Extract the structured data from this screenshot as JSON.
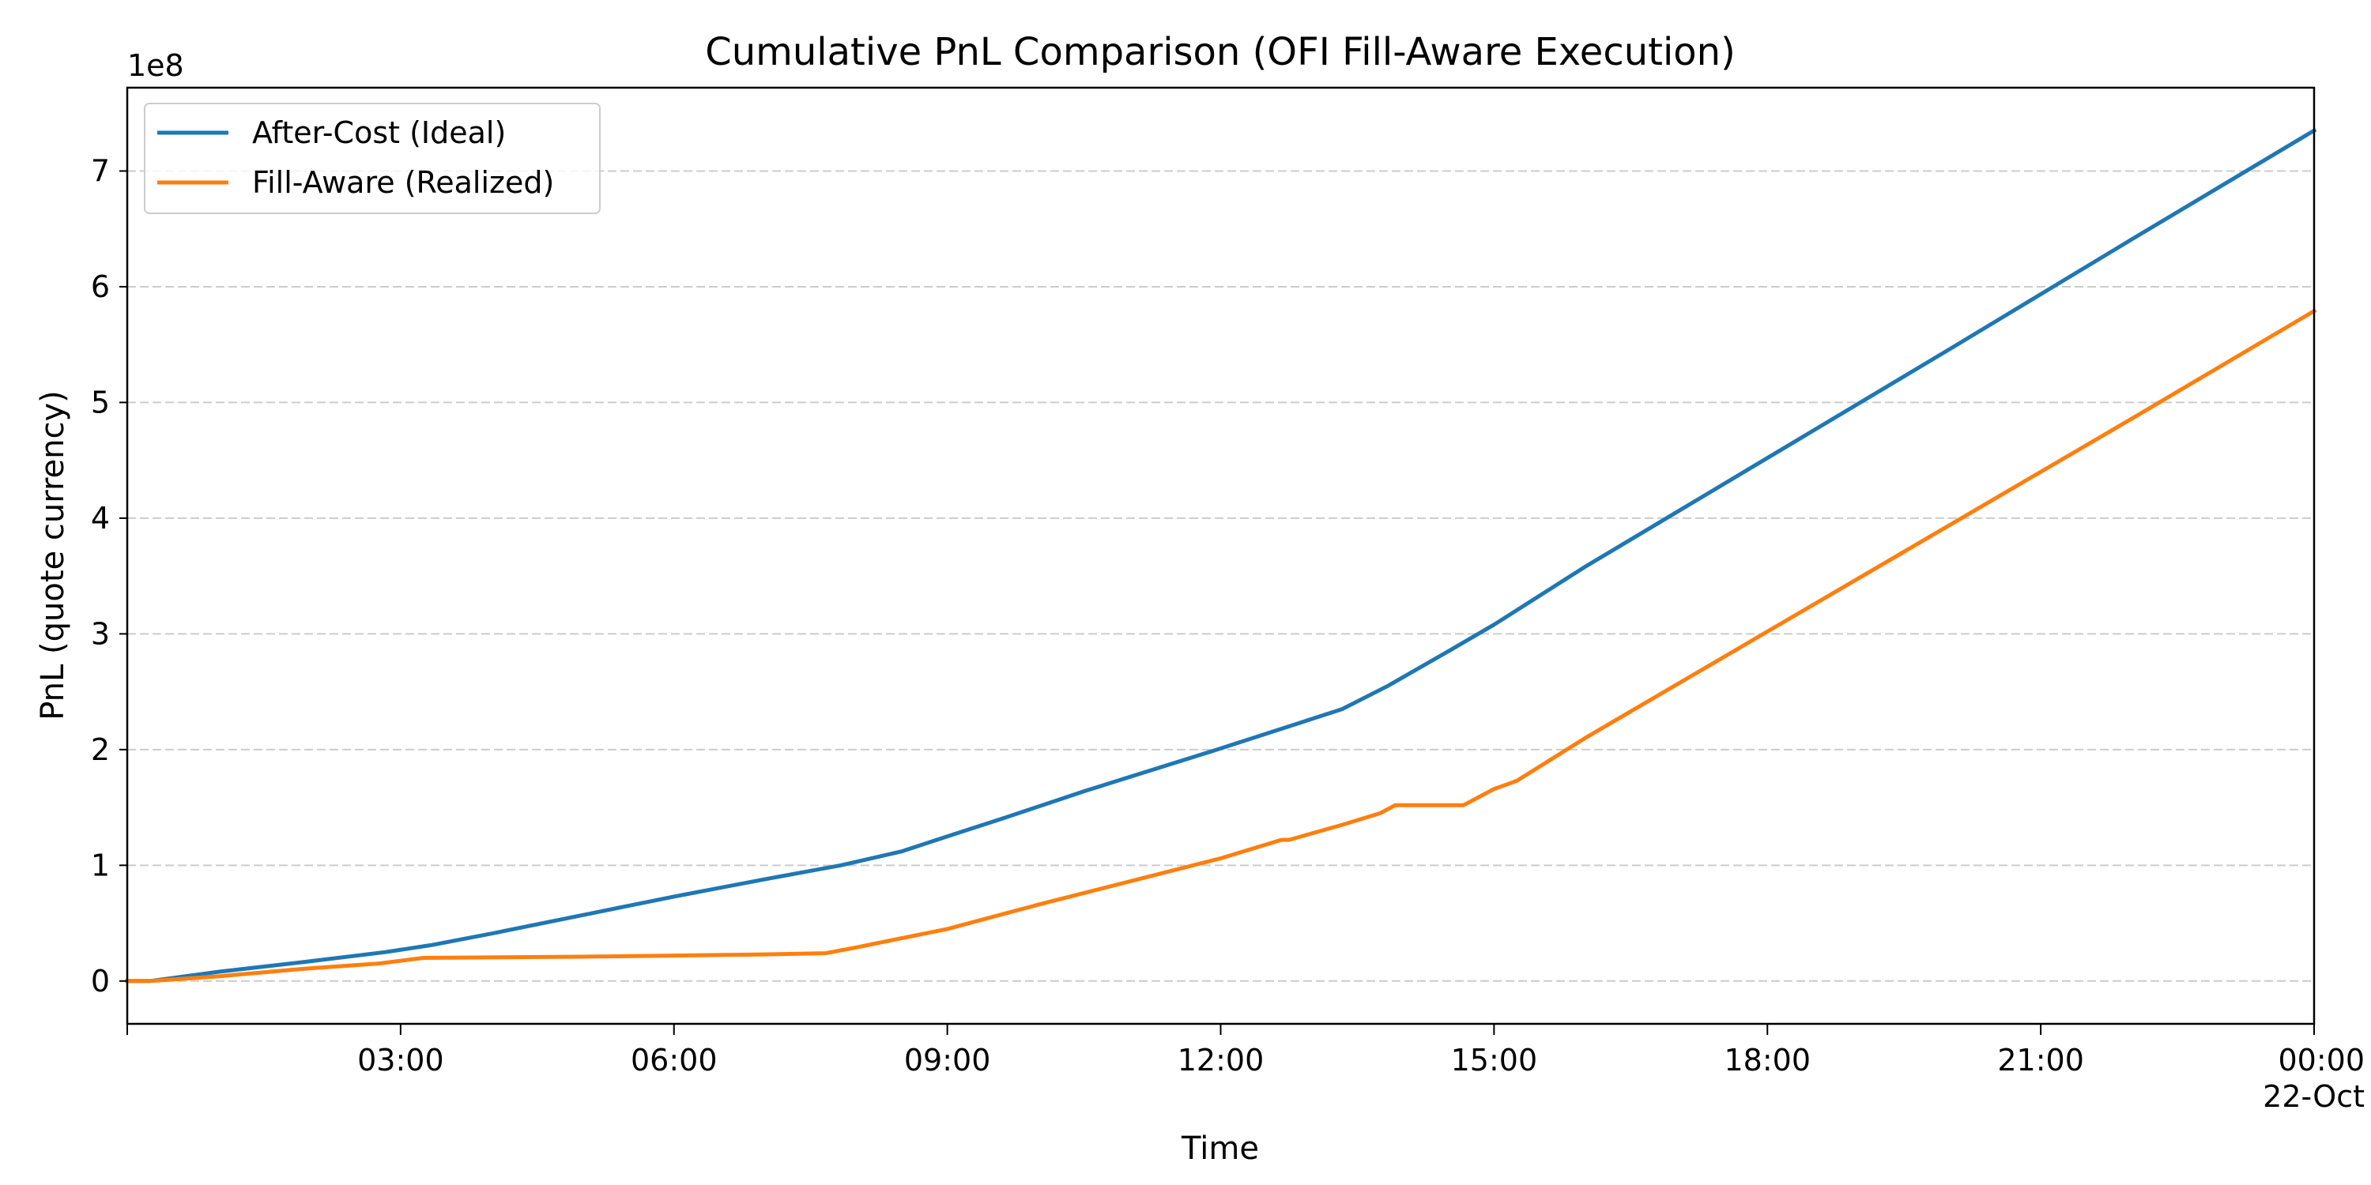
{
  "chart_data": {
    "type": "line",
    "title": "Cumulative PnL Comparison (OFI Fill-Aware Execution)",
    "xlabel": "Time",
    "ylabel": "PnL (quote currency)",
    "y_offset_label": "1e8",
    "y_multiplier": 100000000,
    "xlim": [
      "00:00",
      "24:00"
    ],
    "ylim": [
      -0.37,
      7.72
    ],
    "x_ticks": [
      {
        "x": 3,
        "label": "03:00"
      },
      {
        "x": 6,
        "label": "06:00"
      },
      {
        "x": 9,
        "label": "09:00"
      },
      {
        "x": 12,
        "label": "12:00"
      },
      {
        "x": 15,
        "label": "15:00"
      },
      {
        "x": 18,
        "label": "18:00"
      },
      {
        "x": 21,
        "label": "21:00"
      },
      {
        "x": 24,
        "label": "00:00",
        "sublabel": "22-Oct"
      }
    ],
    "y_ticks": [
      0,
      1,
      2,
      3,
      4,
      5,
      6,
      7
    ],
    "grid": "y-dashed",
    "legend_position": "top-left",
    "series": [
      {
        "name": "After-Cost (Ideal)",
        "color": "#1f77b4",
        "points": [
          [
            "00:00",
            0.0
          ],
          [
            "00:15",
            0.0
          ],
          [
            "01:00",
            0.08
          ],
          [
            "02:00",
            0.17
          ],
          [
            "02:50",
            0.25
          ],
          [
            "03:20",
            0.31
          ],
          [
            "04:00",
            0.41
          ],
          [
            "05:00",
            0.57
          ],
          [
            "06:00",
            0.73
          ],
          [
            "07:00",
            0.88
          ],
          [
            "07:50",
            1.0
          ],
          [
            "08:30",
            1.12
          ],
          [
            "09:00",
            1.25
          ],
          [
            "09:40",
            1.42
          ],
          [
            "10:30",
            1.64
          ],
          [
            "12:00",
            2.01
          ],
          [
            "13:20",
            2.35
          ],
          [
            "13:50",
            2.55
          ],
          [
            "14:30",
            2.85
          ],
          [
            "15:00",
            3.08
          ],
          [
            "16:00",
            3.58
          ],
          [
            "18:00",
            4.52
          ],
          [
            "20:00",
            5.46
          ],
          [
            "22:00",
            6.41
          ],
          [
            "24:00",
            7.35
          ]
        ]
      },
      {
        "name": "Fill-Aware (Realized)",
        "color": "#ff7f0e",
        "points": [
          [
            "00:00",
            0.0
          ],
          [
            "00:15",
            0.0
          ],
          [
            "01:00",
            0.04
          ],
          [
            "02:00",
            0.11
          ],
          [
            "02:45",
            0.15
          ],
          [
            "03:15",
            0.2
          ],
          [
            "05:00",
            0.21
          ],
          [
            "07:00",
            0.23
          ],
          [
            "07:40",
            0.24
          ],
          [
            "08:00",
            0.29
          ],
          [
            "09:00",
            0.45
          ],
          [
            "10:00",
            0.66
          ],
          [
            "12:00",
            1.06
          ],
          [
            "12:40",
            1.22
          ],
          [
            "12:45",
            1.22
          ],
          [
            "13:20",
            1.35
          ],
          [
            "13:45",
            1.45
          ],
          [
            "13:55",
            1.52
          ],
          [
            "14:40",
            1.52
          ],
          [
            "15:00",
            1.66
          ],
          [
            "15:15",
            1.73
          ],
          [
            "16:00",
            2.1
          ],
          [
            "18:00",
            3.02
          ],
          [
            "20:00",
            3.94
          ],
          [
            "22:00",
            4.86
          ],
          [
            "24:00",
            5.79
          ]
        ]
      }
    ]
  }
}
